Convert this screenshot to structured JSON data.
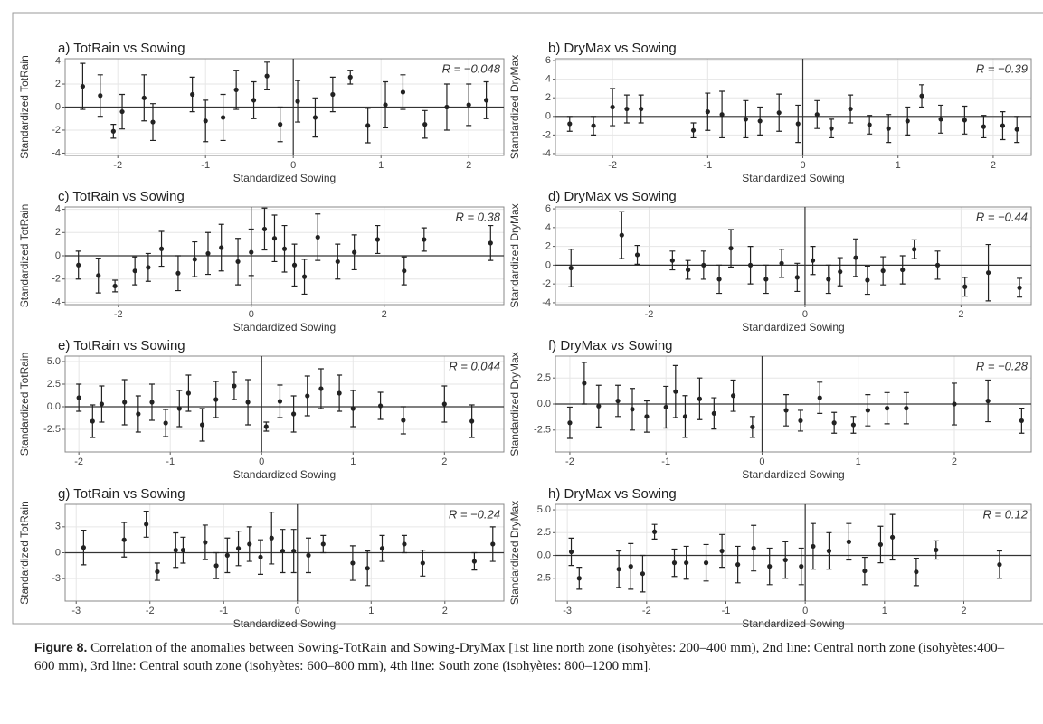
{
  "chart_data": [
    {
      "type": "scatter",
      "title": "a) TotRain vs Sowing",
      "xlabel": "Standardized Sowing",
      "ylabel": "Standardized TotRain",
      "annotation": "R = −0.048",
      "color": "#222222",
      "grid": true,
      "xlim": [
        -2.6,
        2.4
      ],
      "ylim": [
        -4.2,
        4.2
      ],
      "xticks": [
        -2,
        -1,
        0,
        1,
        2
      ],
      "yticks": [
        -4,
        -2,
        0,
        2,
        4
      ],
      "x": [
        -2.4,
        -2.2,
        -2.05,
        -1.95,
        -1.7,
        -1.6,
        -1.15,
        -1.0,
        -0.8,
        -0.65,
        -0.45,
        -0.3,
        -0.15,
        0.05,
        0.25,
        0.45,
        0.65,
        0.85,
        1.05,
        1.25,
        1.5,
        1.75,
        2.0,
        2.2
      ],
      "series": [
        {
          "values": [
            1.8,
            1.0,
            -2.1,
            -0.4,
            0.8,
            -1.3,
            1.1,
            -1.2,
            -0.9,
            1.5,
            0.6,
            2.7,
            -1.5,
            0.5,
            -0.9,
            1.1,
            2.6,
            -1.6,
            0.2,
            1.3,
            -1.5,
            0.0,
            0.2,
            0.6
          ],
          "errors": [
            2,
            1.8,
            0.6,
            1.5,
            2,
            1.6,
            1.5,
            1.8,
            2,
            1.7,
            1.6,
            1.2,
            1.5,
            1.8,
            1.7,
            1.5,
            0.6,
            1.5,
            2,
            1.5,
            1.2,
            2,
            1.8,
            1.6
          ]
        }
      ]
    },
    {
      "type": "scatter",
      "title": "b) DryMax vs Sowing",
      "xlabel": "Standardized Sowing",
      "ylabel": "Standardized DryMax",
      "annotation": "R = −0.39",
      "color": "#222222",
      "grid": true,
      "xlim": [
        -2.6,
        2.4
      ],
      "ylim": [
        -4.2,
        6.2
      ],
      "xticks": [
        -2,
        -1,
        0,
        1,
        2
      ],
      "yticks": [
        -4,
        -2,
        0,
        2,
        4,
        6
      ],
      "x": [
        -2.45,
        -2.2,
        -2.0,
        -1.85,
        -1.7,
        -1.15,
        -1.0,
        -0.85,
        -0.6,
        -0.45,
        -0.25,
        -0.05,
        0.15,
        0.3,
        0.5,
        0.7,
        0.9,
        1.1,
        1.25,
        1.45,
        1.7,
        1.9,
        2.1,
        2.25
      ],
      "series": [
        {
          "values": [
            -0.8,
            -1.0,
            1.0,
            0.8,
            0.8,
            -1.5,
            0.5,
            0.2,
            -0.3,
            -0.5,
            0.4,
            -0.8,
            0.2,
            -1.3,
            0.8,
            -0.9,
            -1.3,
            -0.5,
            2.2,
            -0.3,
            -0.4,
            -1.1,
            -1.0,
            -1.4
          ],
          "errors": [
            0.8,
            1,
            2,
            1.5,
            1.5,
            0.8,
            2,
            2.5,
            2,
            1.5,
            2,
            2,
            1.5,
            1,
            1.5,
            1,
            1.5,
            1.5,
            1.2,
            1.5,
            1.5,
            1.2,
            1.5,
            1.4
          ]
        }
      ]
    },
    {
      "type": "scatter",
      "title": "c) TotRain vs Sowing",
      "xlabel": "Standardized Sowing",
      "ylabel": "Standardized TotRain",
      "annotation": "R = 0.38",
      "color": "#222222",
      "grid": true,
      "xlim": [
        -2.8,
        3.8
      ],
      "ylim": [
        -4.2,
        4.2
      ],
      "xticks": [
        -2,
        0,
        2
      ],
      "yticks": [
        -4,
        -2,
        0,
        2,
        4
      ],
      "x": [
        -2.6,
        -2.3,
        -2.05,
        -1.75,
        -1.55,
        -1.35,
        -1.1,
        -0.85,
        -0.65,
        -0.45,
        -0.2,
        0.0,
        0.2,
        0.35,
        0.5,
        0.65,
        0.8,
        1.0,
        1.3,
        1.55,
        1.9,
        2.3,
        2.6,
        3.6
      ],
      "series": [
        {
          "values": [
            -0.8,
            -1.7,
            -2.6,
            -1.3,
            -1.0,
            0.6,
            -1.5,
            -0.3,
            0.2,
            0.7,
            -0.5,
            0.3,
            2.3,
            1.5,
            0.6,
            -0.8,
            -1.8,
            1.6,
            -0.5,
            0.3,
            1.4,
            -1.3,
            1.4,
            1.1
          ],
          "errors": [
            1.2,
            1.5,
            0.5,
            1.2,
            1.2,
            1.5,
            1.5,
            1.5,
            1.8,
            2,
            2,
            2,
            1.8,
            2,
            2,
            1.8,
            1.5,
            2,
            1.5,
            1.5,
            1.2,
            1.2,
            1,
            1.5
          ]
        }
      ]
    },
    {
      "type": "scatter",
      "title": "d) DryMax vs Sowing",
      "xlabel": "Standardized Sowing",
      "ylabel": "Standardized DryMax",
      "annotation": "R = −0.44",
      "color": "#222222",
      "grid": true,
      "xlim": [
        -3.2,
        2.9
      ],
      "ylim": [
        -4.2,
        6.2
      ],
      "xticks": [
        -2,
        0,
        2
      ],
      "yticks": [
        -4,
        -2,
        0,
        2,
        4,
        6
      ],
      "x": [
        -3.0,
        -2.35,
        -2.15,
        -1.7,
        -1.5,
        -1.3,
        -1.1,
        -0.95,
        -0.7,
        -0.5,
        -0.3,
        -0.1,
        0.1,
        0.3,
        0.45,
        0.65,
        0.8,
        1.0,
        1.25,
        1.4,
        1.7,
        2.05,
        2.35,
        2.75
      ],
      "series": [
        {
          "values": [
            -0.3,
            3.2,
            1.1,
            0.5,
            -0.5,
            0,
            -1.5,
            1.8,
            0,
            -1.5,
            0.2,
            -1.3,
            0.5,
            -1.5,
            -0.7,
            0.8,
            -1.6,
            -0.6,
            -0.5,
            1.7,
            0,
            -2.3,
            -0.8,
            -2.4
          ],
          "errors": [
            2,
            2.5,
            1,
            1,
            1,
            1.5,
            1.5,
            2,
            2,
            1.5,
            1.5,
            1.5,
            1.5,
            1.5,
            1.5,
            2,
            1.5,
            1.5,
            1.5,
            1,
            1.5,
            1,
            3,
            1
          ]
        }
      ]
    },
    {
      "type": "scatter",
      "title": "e) TotRain vs Sowing",
      "xlabel": "Standardized Sowing",
      "ylabel": "Standardized TotRain",
      "annotation": "R = 0.044",
      "color": "#222222",
      "grid": true,
      "xlim": [
        -2.15,
        2.65
      ],
      "ylim": [
        -5,
        5.6
      ],
      "xticks": [
        -2,
        -1,
        0,
        1,
        2
      ],
      "yticks": [
        {
          "value": -2.5,
          "label": "-2.5"
        },
        {
          "value": 0,
          "label": "0.0"
        },
        {
          "value": 2.5,
          "label": "2.5"
        },
        {
          "value": 5,
          "label": "5.0"
        }
      ],
      "x": [
        -2.0,
        -1.85,
        -1.75,
        -1.5,
        -1.35,
        -1.2,
        -1.05,
        -0.9,
        -0.8,
        -0.65,
        -0.5,
        -0.3,
        -0.15,
        0.05,
        0.2,
        0.35,
        0.5,
        0.65,
        0.85,
        1.0,
        1.3,
        1.55,
        2.0,
        2.3
      ],
      "series": [
        {
          "values": [
            1.0,
            -1.6,
            0.3,
            0.5,
            -0.8,
            0.5,
            -1.8,
            -0.2,
            1.5,
            -2.0,
            0.8,
            2.3,
            0.5,
            -2.2,
            0.6,
            -0.8,
            1.2,
            2.0,
            1.5,
            -0.2,
            0.1,
            -1.5,
            0.3,
            -1.6
          ],
          "errors": [
            1.5,
            1.8,
            2,
            2.5,
            2,
            2,
            1.5,
            2,
            2,
            1.8,
            2,
            1.5,
            2.5,
            0.5,
            1.8,
            2,
            2.2,
            2.2,
            2,
            2,
            1.5,
            1.5,
            2,
            1.8
          ]
        }
      ]
    },
    {
      "type": "scatter",
      "title": "f) DryMax vs Sowing",
      "xlabel": "Standardized Sowing",
      "ylabel": "Standardized DryMax",
      "annotation": "R = −0.28",
      "color": "#222222",
      "grid": true,
      "xlim": [
        -2.15,
        2.8
      ],
      "ylim": [
        -4.6,
        4.6
      ],
      "xticks": [
        -2,
        -1,
        0,
        1,
        2
      ],
      "yticks": [
        {
          "value": -2.5,
          "label": "-2.5"
        },
        {
          "value": 0,
          "label": "0.0"
        },
        {
          "value": 2.5,
          "label": "2.5"
        }
      ],
      "x": [
        -2.0,
        -1.85,
        -1.7,
        -1.5,
        -1.35,
        -1.2,
        -1.0,
        -0.9,
        -0.8,
        -0.65,
        -0.5,
        -0.3,
        -0.1,
        0.25,
        0.4,
        0.6,
        0.75,
        0.95,
        1.1,
        1.3,
        1.5,
        2.0,
        2.35,
        2.7
      ],
      "series": [
        {
          "values": [
            -1.8,
            2.0,
            -0.2,
            0.3,
            -0.5,
            -1.2,
            -0.3,
            1.2,
            -1.2,
            0.5,
            -0.9,
            0.8,
            -2.2,
            -0.6,
            -1.6,
            0.6,
            -1.8,
            -2.0,
            -0.6,
            -0.4,
            -0.4,
            0.0,
            0.3,
            -1.6
          ],
          "errors": [
            1.5,
            2,
            2,
            1.5,
            2,
            1.5,
            2,
            2.5,
            2,
            2,
            1.5,
            1.5,
            1,
            1.5,
            1,
            1.5,
            1,
            0.8,
            1.5,
            1.5,
            1.5,
            2,
            2,
            1.2
          ]
        }
      ]
    },
    {
      "type": "scatter",
      "title": "g) TotRain vs Sowing",
      "xlabel": "Standardized Sowing",
      "ylabel": "Standardized TotRain",
      "annotation": "R = −0.24",
      "color": "#222222",
      "grid": true,
      "xlim": [
        -3.15,
        2.8
      ],
      "ylim": [
        -5.6,
        5.6
      ],
      "xticks": [
        -3,
        -2,
        -1,
        0,
        1,
        2
      ],
      "yticks": [
        -3,
        0,
        3
      ],
      "x": [
        -2.9,
        -2.35,
        -2.05,
        -1.9,
        -1.65,
        -1.55,
        -1.25,
        -1.1,
        -0.95,
        -0.8,
        -0.65,
        -0.5,
        -0.35,
        -0.2,
        -0.05,
        0.15,
        0.35,
        0.75,
        0.95,
        1.15,
        1.45,
        1.7,
        2.4,
        2.65
      ],
      "series": [
        {
          "values": [
            0.6,
            1.5,
            3.3,
            -2.2,
            0.3,
            0.3,
            1.2,
            -1.5,
            -0.3,
            0.5,
            1.0,
            -0.5,
            1.7,
            0.2,
            0.2,
            -0.3,
            1.0,
            -1.2,
            -1.8,
            0.5,
            1.0,
            -1.2,
            -1.0,
            1.0
          ],
          "errors": [
            2,
            2,
            1.5,
            1,
            2,
            1.5,
            2,
            1.5,
            2,
            2,
            2,
            2,
            3,
            2.5,
            2.5,
            2,
            1,
            2,
            2,
            1.5,
            1,
            1.5,
            1,
            2
          ]
        }
      ]
    },
    {
      "type": "scatter",
      "title": "h) DryMax vs Sowing",
      "xlabel": "Standardized Sowing",
      "ylabel": "Standardized DryMax",
      "annotation": "R = 0.12",
      "color": "#222222",
      "grid": true,
      "xlim": [
        -3.15,
        2.85
      ],
      "ylim": [
        -5,
        5.6
      ],
      "xticks": [
        -3,
        -2,
        -1,
        0,
        1,
        2
      ],
      "yticks": [
        {
          "value": -2.5,
          "label": "-2.5"
        },
        {
          "value": 0,
          "label": "0.0"
        },
        {
          "value": 2.5,
          "label": "2.5"
        },
        {
          "value": 5,
          "label": "5.0"
        }
      ],
      "x": [
        -2.95,
        -2.85,
        -2.35,
        -2.2,
        -2.05,
        -1.9,
        -1.65,
        -1.5,
        -1.25,
        -1.05,
        -0.85,
        -0.65,
        -0.45,
        -0.25,
        -0.05,
        0.1,
        0.3,
        0.55,
        0.75,
        0.95,
        1.1,
        1.4,
        1.65,
        2.45
      ],
      "series": [
        {
          "values": [
            0.4,
            -2.5,
            -1.5,
            -1.2,
            -2.0,
            2.6,
            -0.8,
            -0.8,
            -0.8,
            0.5,
            -1.0,
            0.8,
            -1.2,
            -0.5,
            -1.2,
            1.0,
            0.5,
            1.5,
            -1.7,
            1.2,
            2.0,
            -1.8,
            0.6,
            -1.0
          ],
          "errors": [
            1.5,
            1.2,
            2,
            2.5,
            2,
            0.8,
            1.5,
            1.8,
            2,
            1.8,
            2,
            2.5,
            2,
            2,
            2,
            2.5,
            2,
            2,
            1.5,
            2,
            2.5,
            1.5,
            1,
            1.5
          ]
        }
      ]
    }
  ],
  "caption": {
    "label": "Figure 8.",
    "text": "Correlation of the anomalies between Sowing-TotRain and Sowing-DryMax [1st line north zone (isohyètes: 200–400 mm), 2nd line: Central north zone (isohyètes:400–600 mm), 3rd line: Central south zone (isohyètes: 600–800 mm), 4th line: South zone (isohyètes: 800–1200 mm]."
  }
}
